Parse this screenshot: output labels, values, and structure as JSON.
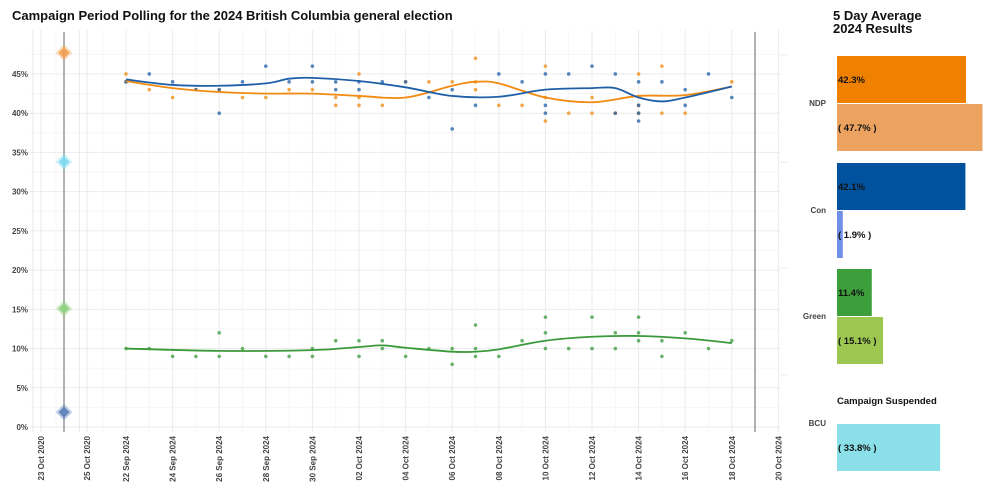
{
  "chart_data": [
    {
      "type": "scatter",
      "title": "Campaign Period Polling for the 2024 British Columbia general election",
      "xlabel": "",
      "ylabel": "",
      "ylim": [
        0,
        48
      ],
      "yticks": [
        "0%",
        "5%",
        "10%",
        "15%",
        "20%",
        "25%",
        "30%",
        "35%",
        "40%",
        "45%"
      ],
      "xticks_2020": [
        "23 Oct 2020",
        "25 Oct 2020"
      ],
      "xticks_2024": [
        "22 Sep 2024",
        "24 Sep 2024",
        "26 Sep 2024",
        "28 Sep 2024",
        "30 Sep 2024",
        "02 Oct 2024",
        "04 Oct 2024",
        "06 Oct 2024",
        "08 Oct 2024",
        "10 Oct 2024",
        "12 Oct 2024",
        "14 Oct 2024",
        "16 Oct 2024",
        "18 Oct 2024",
        "20 Oct 2024"
      ],
      "grid": true,
      "previous_election_date": "24 Oct 2020",
      "previous_results": [
        {
          "party": "NDP",
          "value": 47.7,
          "color": "#f0a050"
        },
        {
          "party": "BCU",
          "value": 33.8,
          "color": "#7fdcef"
        },
        {
          "party": "Green",
          "value": 15.1,
          "color": "#8fcf80"
        },
        {
          "party": "Con",
          "value": 1.9,
          "color": "#5a80b8"
        }
      ],
      "series": [
        {
          "party": "NDP",
          "color": "#f08a10",
          "polls": [
            [
              "22 Sep",
              45
            ],
            [
              "22 Sep",
              44
            ],
            [
              "23 Sep",
              43
            ],
            [
              "24 Sep",
              42
            ],
            [
              "25 Sep",
              43
            ],
            [
              "26 Sep",
              43
            ],
            [
              "27 Sep",
              42
            ],
            [
              "28 Sep",
              42
            ],
            [
              "29 Sep",
              43
            ],
            [
              "30 Sep",
              43
            ],
            [
              "01 Oct",
              41
            ],
            [
              "01 Oct",
              42
            ],
            [
              "02 Oct",
              41
            ],
            [
              "02 Oct",
              45
            ],
            [
              "02 Oct",
              42
            ],
            [
              "03 Oct",
              41
            ],
            [
              "04 Oct",
              44
            ],
            [
              "05 Oct",
              44
            ],
            [
              "06 Oct",
              44
            ],
            [
              "07 Oct",
              47
            ],
            [
              "07 Oct",
              43
            ],
            [
              "07 Oct",
              44
            ],
            [
              "08 Oct",
              41
            ],
            [
              "09 Oct",
              41
            ],
            [
              "10 Oct",
              46
            ],
            [
              "10 Oct",
              42
            ],
            [
              "10 Oct",
              39
            ],
            [
              "11 Oct",
              40
            ],
            [
              "12 Oct",
              40
            ],
            [
              "12 Oct",
              42
            ],
            [
              "13 Oct",
              40
            ],
            [
              "14 Oct",
              45
            ],
            [
              "14 Oct",
              41
            ],
            [
              "14 Oct",
              40
            ],
            [
              "15 Oct",
              46
            ],
            [
              "15 Oct",
              40
            ],
            [
              "16 Oct",
              40
            ],
            [
              "18 Oct",
              44
            ]
          ],
          "trend": [
            [
              "22 Sep",
              44.1
            ],
            [
              "24 Sep",
              43.2
            ],
            [
              "26 Sep",
              42.7
            ],
            [
              "28 Sep",
              42.5
            ],
            [
              "30 Sep",
              42.5
            ],
            [
              "02 Oct",
              42.2
            ],
            [
              "04 Oct",
              42.0
            ],
            [
              "06 Oct",
              43.5
            ],
            [
              "07 Oct",
              44.0
            ],
            [
              "08 Oct",
              43.8
            ],
            [
              "10 Oct",
              42.0
            ],
            [
              "12 Oct",
              41.4
            ],
            [
              "14 Oct",
              42.2
            ],
            [
              "16 Oct",
              42.3
            ],
            [
              "18 Oct",
              43.4
            ]
          ]
        },
        {
          "party": "Con",
          "color": "#1f5fa8",
          "polls": [
            [
              "22 Sep",
              44
            ],
            [
              "23 Sep",
              45
            ],
            [
              "24 Sep",
              44
            ],
            [
              "25 Sep",
              43
            ],
            [
              "26 Sep",
              43
            ],
            [
              "26 Sep",
              40
            ],
            [
              "27 Sep",
              44
            ],
            [
              "28 Sep",
              46
            ],
            [
              "29 Sep",
              44
            ],
            [
              "30 Sep",
              46
            ],
            [
              "30 Sep",
              44
            ],
            [
              "01 Oct",
              44
            ],
            [
              "01 Oct",
              43
            ],
            [
              "02 Oct",
              44
            ],
            [
              "02 Oct",
              43
            ],
            [
              "03 Oct",
              44
            ],
            [
              "04 Oct",
              44
            ],
            [
              "05 Oct",
              42
            ],
            [
              "06 Oct",
              38
            ],
            [
              "06 Oct",
              43
            ],
            [
              "07 Oct",
              41
            ],
            [
              "08 Oct",
              45
            ],
            [
              "09 Oct",
              44
            ],
            [
              "10 Oct",
              45
            ],
            [
              "10 Oct",
              41
            ],
            [
              "10 Oct",
              40
            ],
            [
              "11 Oct",
              45
            ],
            [
              "12 Oct",
              46
            ],
            [
              "13 Oct",
              45
            ],
            [
              "13 Oct",
              40
            ],
            [
              "14 Oct",
              44
            ],
            [
              "14 Oct",
              41
            ],
            [
              "14 Oct",
              40
            ],
            [
              "14 Oct",
              39
            ],
            [
              "15 Oct",
              44
            ],
            [
              "16 Oct",
              43
            ],
            [
              "16 Oct",
              41
            ],
            [
              "17 Oct",
              45
            ],
            [
              "18 Oct",
              42
            ]
          ],
          "trend": [
            [
              "22 Sep",
              44.3
            ],
            [
              "24 Sep",
              43.6
            ],
            [
              "26 Sep",
              43.5
            ],
            [
              "28 Sep",
              43.8
            ],
            [
              "29 Sep",
              44.4
            ],
            [
              "30 Sep",
              44.5
            ],
            [
              "02 Oct",
              44.1
            ],
            [
              "04 Oct",
              43.3
            ],
            [
              "06 Oct",
              42.2
            ],
            [
              "08 Oct",
              42.1
            ],
            [
              "10 Oct",
              43.0
            ],
            [
              "12 Oct",
              43.2
            ],
            [
              "13 Oct",
              43.2
            ],
            [
              "14 Oct",
              42.0
            ],
            [
              "15 Oct",
              41.5
            ],
            [
              "16 Oct",
              42.0
            ],
            [
              "18 Oct",
              43.4
            ]
          ]
        },
        {
          "party": "Green",
          "color": "#3a9a3a",
          "polls": [
            [
              "22 Sep",
              10
            ],
            [
              "23 Sep",
              10
            ],
            [
              "24 Sep",
              9
            ],
            [
              "25 Sep",
              9
            ],
            [
              "26 Sep",
              12
            ],
            [
              "26 Sep",
              9
            ],
            [
              "27 Sep",
              10
            ],
            [
              "28 Sep",
              9
            ],
            [
              "29 Sep",
              9
            ],
            [
              "30 Sep",
              9
            ],
            [
              "30 Sep",
              10
            ],
            [
              "01 Oct",
              11
            ],
            [
              "02 Oct",
              11
            ],
            [
              "02 Oct",
              9
            ],
            [
              "03 Oct",
              10
            ],
            [
              "03 Oct",
              11
            ],
            [
              "04 Oct",
              9
            ],
            [
              "05 Oct",
              10
            ],
            [
              "06 Oct",
              10
            ],
            [
              "06 Oct",
              8
            ],
            [
              "07 Oct",
              13
            ],
            [
              "07 Oct",
              10
            ],
            [
              "07 Oct",
              9
            ],
            [
              "08 Oct",
              9
            ],
            [
              "09 Oct",
              11
            ],
            [
              "10 Oct",
              14
            ],
            [
              "10 Oct",
              12
            ],
            [
              "10 Oct",
              10
            ],
            [
              "11 Oct",
              10
            ],
            [
              "12 Oct",
              14
            ],
            [
              "12 Oct",
              10
            ],
            [
              "13 Oct",
              12
            ],
            [
              "13 Oct",
              10
            ],
            [
              "14 Oct",
              14
            ],
            [
              "14 Oct",
              12
            ],
            [
              "14 Oct",
              11
            ],
            [
              "15 Oct",
              11
            ],
            [
              "15 Oct",
              9
            ],
            [
              "16 Oct",
              12
            ],
            [
              "17 Oct",
              10
            ],
            [
              "18 Oct",
              11
            ]
          ],
          "trend": [
            [
              "22 Sep",
              10.0
            ],
            [
              "26 Sep",
              9.7
            ],
            [
              "30 Sep",
              9.8
            ],
            [
              "02 Oct",
              10.2
            ],
            [
              "03 Oct",
              10.4
            ],
            [
              "04 Oct",
              10.1
            ],
            [
              "06 Oct",
              9.6
            ],
            [
              "07 Oct",
              9.6
            ],
            [
              "08 Oct",
              9.9
            ],
            [
              "10 Oct",
              11.0
            ],
            [
              "12 Oct",
              11.5
            ],
            [
              "14 Oct",
              11.6
            ],
            [
              "16 Oct",
              11.3
            ],
            [
              "18 Oct",
              10.7
            ]
          ]
        }
      ]
    },
    {
      "type": "bar",
      "title": "5 Day Average\n2024 Results",
      "title_lines": [
        "5 Day Average",
        "2024 Results"
      ],
      "categories": [
        "NDP",
        "Con",
        "Green",
        "BCU"
      ],
      "series": [
        {
          "values": [
            42.3,
            42.1,
            11.4,
            null
          ],
          "labels": [
            "42.3%",
            "42.1%",
            "11.4%",
            ""
          ],
          "colors": [
            "#f08000",
            "#00529f",
            "#3c9f3c",
            ""
          ]
        },
        {
          "values": [
            47.7,
            1.9,
            15.1,
            33.8
          ],
          "labels": [
            "( 47.7% )",
            "( 1.9% )",
            "( 15.1% )",
            "( 33.8% )"
          ],
          "colors": [
            "#eba35f",
            "#6f8fe8",
            "#9cc852",
            "#8adfe8"
          ]
        }
      ],
      "annotation": "Campaign Suspended"
    }
  ]
}
